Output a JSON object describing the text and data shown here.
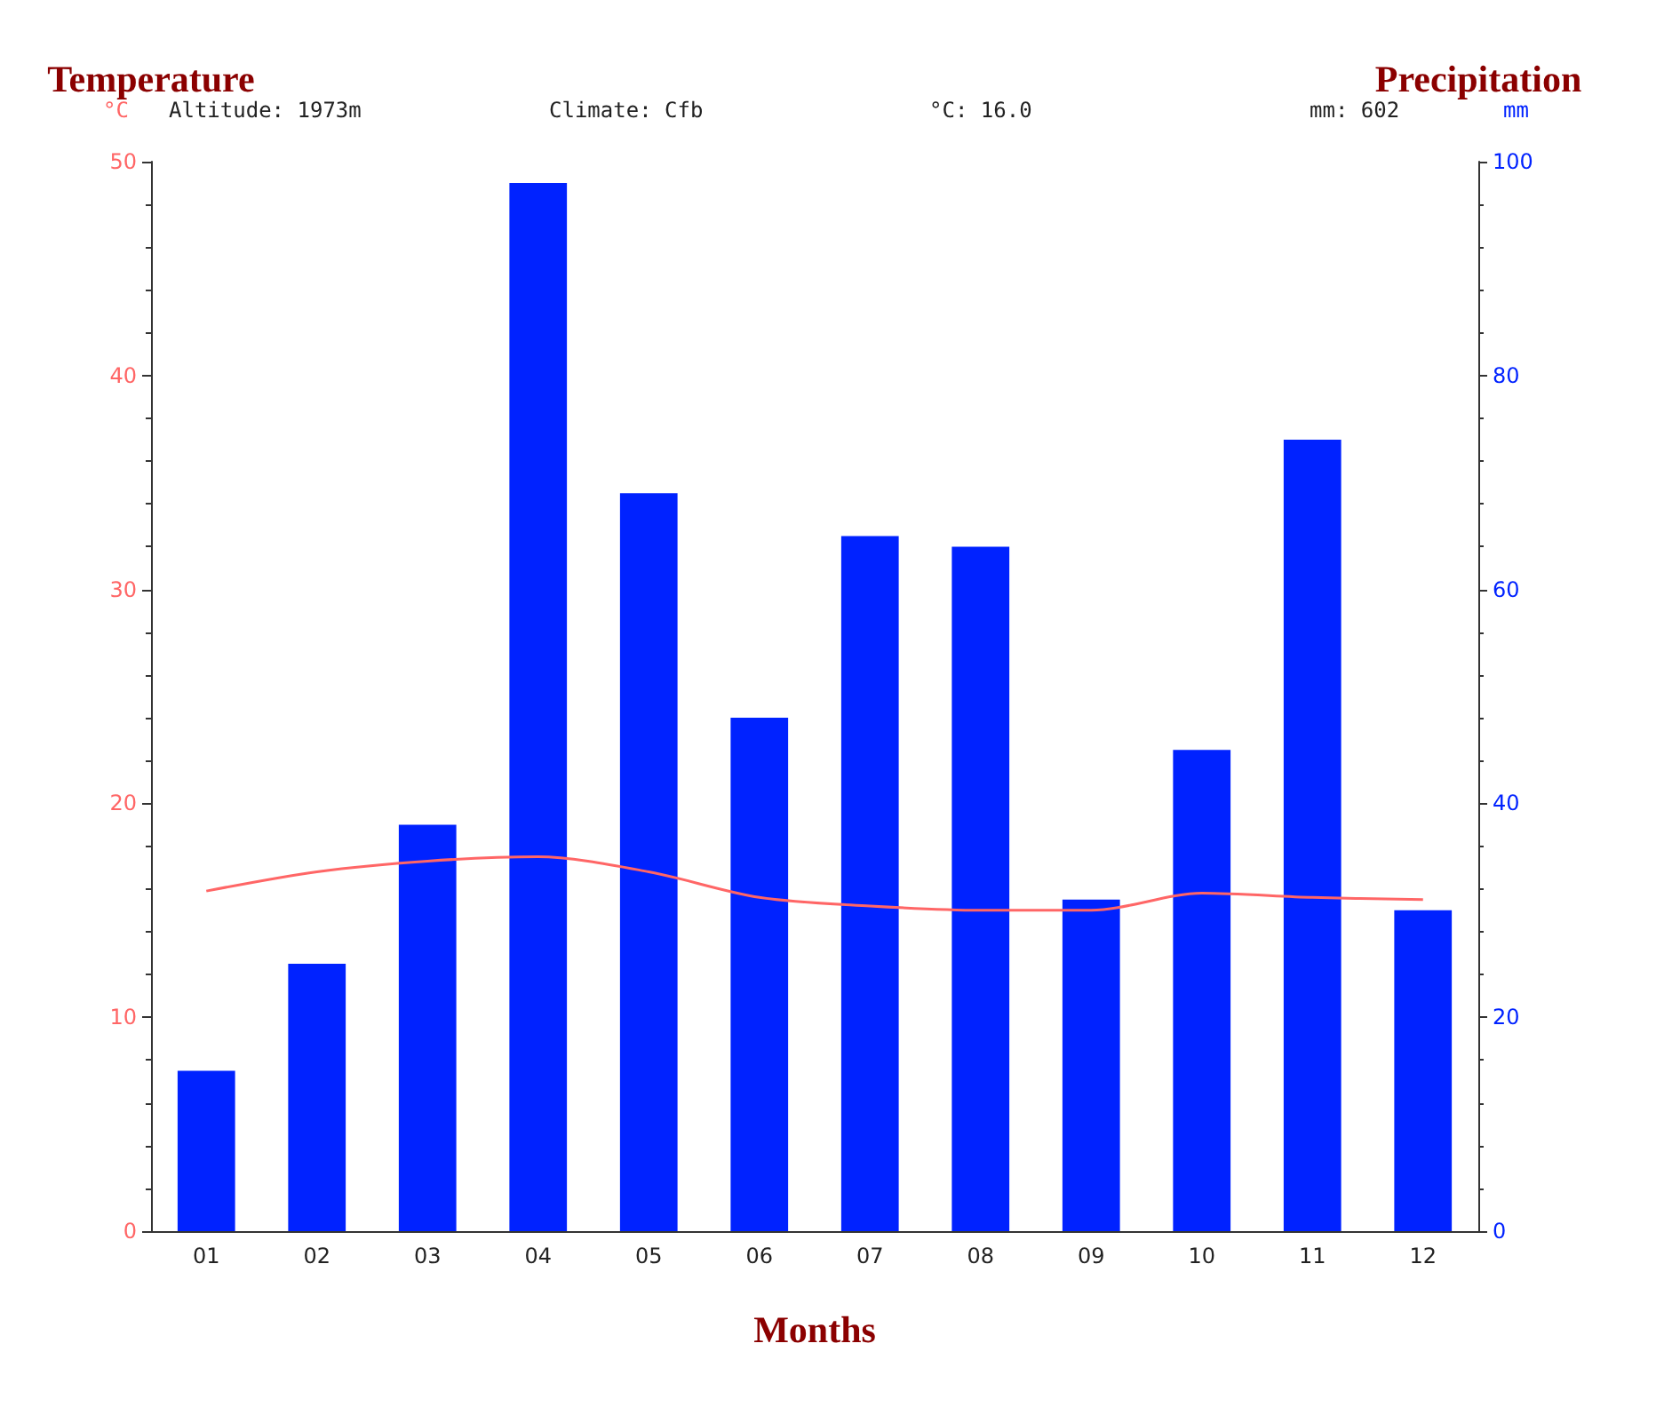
{
  "chart_data": {
    "type": "bar",
    "ylabel": "Temperature",
    "y2label": "Precipitation",
    "xlabel": "Months",
    "annotations": [
      "°C",
      "Altitude: 1973m",
      "Climate: Cfb",
      "°C: 16.0",
      "mm: 602",
      "mm"
    ],
    "categories": [
      "01",
      "02",
      "03",
      "04",
      "05",
      "06",
      "07",
      "08",
      "09",
      "10",
      "11",
      "12"
    ],
    "series": [
      {
        "axis": "y2",
        "color": "#0022ff",
        "values": [
          15,
          25,
          38,
          98,
          69,
          48,
          65,
          64,
          31,
          45,
          74,
          30
        ]
      },
      {
        "type": "line",
        "axis": "y",
        "color": "#ff6666",
        "marker": "none",
        "values": [
          15.9,
          16.8,
          17.3,
          17.5,
          16.8,
          15.6,
          15.2,
          15.0,
          15.0,
          15.8,
          15.6,
          15.5
        ]
      }
    ],
    "ylim": [
      0,
      50
    ],
    "yticks": [
      0,
      10,
      20,
      30,
      40,
      50
    ],
    "y2lim": [
      0,
      100
    ],
    "y2ticks": [
      0,
      20,
      40,
      60,
      80,
      100
    ],
    "grid": false
  }
}
